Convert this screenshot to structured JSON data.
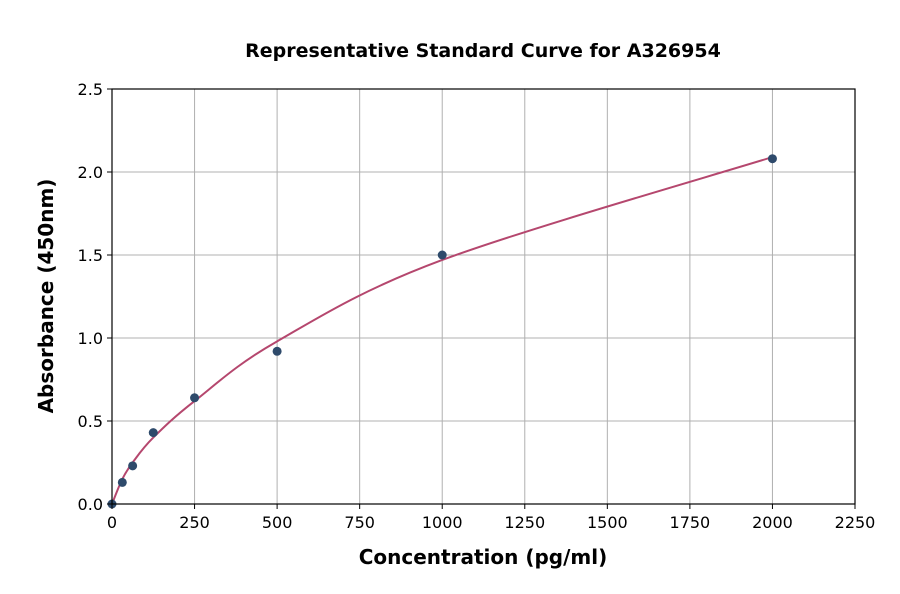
{
  "chart_data": {
    "type": "scatter",
    "title": "Representative Standard Curve for A326954",
    "xlabel": "Concentration (pg/ml)",
    "ylabel": "Absorbance (450nm)",
    "xlim": [
      0,
      2250
    ],
    "ylim": [
      0,
      2.5
    ],
    "xticks": [
      "0",
      "250",
      "500",
      "750",
      "1000",
      "1250",
      "1500",
      "1750",
      "2000",
      "2250"
    ],
    "yticks": [
      "0.0",
      "0.5",
      "1.0",
      "1.5",
      "2.0",
      "2.5"
    ],
    "grid": true,
    "points": {
      "x": [
        0,
        31.25,
        62.5,
        125,
        250,
        500,
        1000,
        2000
      ],
      "y": [
        0,
        0.13,
        0.23,
        0.43,
        0.64,
        0.92,
        1.5,
        2.08
      ]
    },
    "fit_line": true,
    "colors": {
      "points": "#2e4a6b",
      "curve": "#b5476e",
      "grid": "#b0b0b0"
    }
  }
}
